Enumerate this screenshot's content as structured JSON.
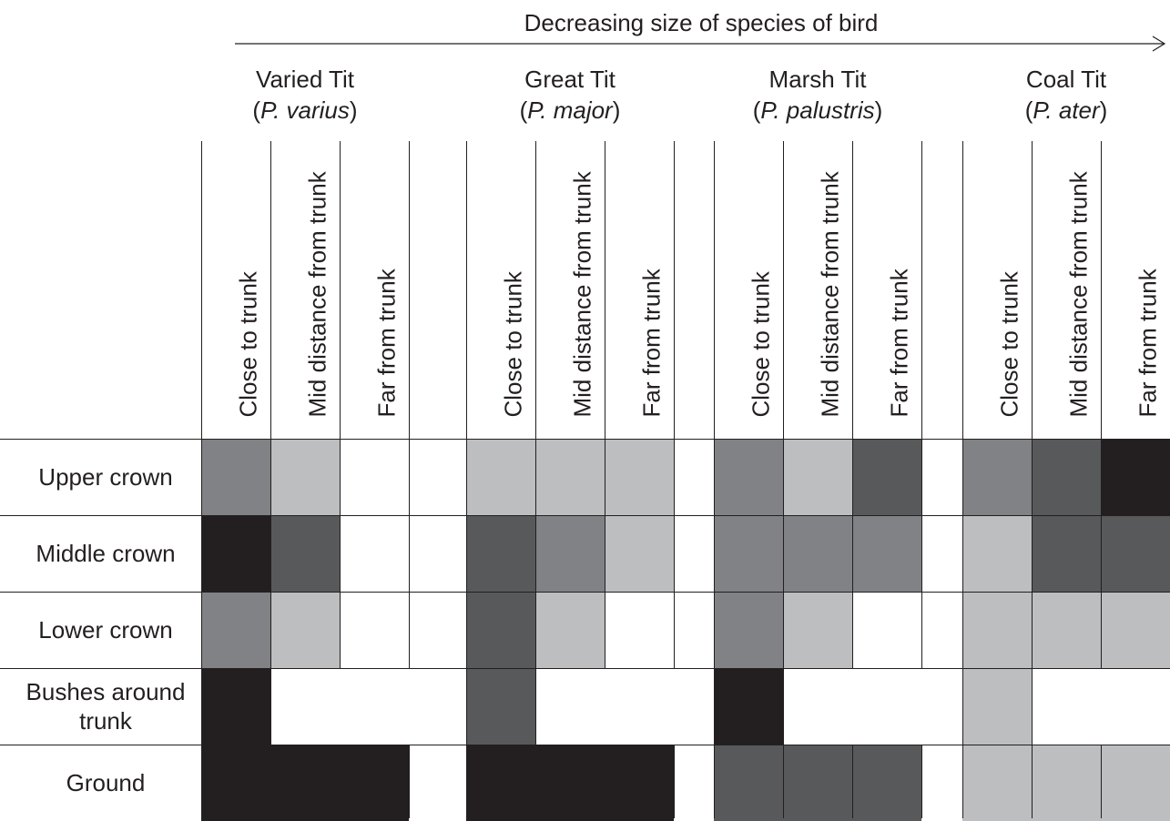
{
  "axis_label": "Decreasing size of species of bird",
  "colors": {
    "black": "#231f20",
    "dark": "#58595b",
    "medium": "#808285",
    "light": "#bcbec0",
    "white": "#ffffff"
  },
  "species": [
    {
      "common": "Varied Tit",
      "latin": "P. varius"
    },
    {
      "common": "Great Tit",
      "latin": "P. major"
    },
    {
      "common": "Marsh Tit",
      "latin": "P. palustris"
    },
    {
      "common": "Coal Tit",
      "latin": "P. ater"
    }
  ],
  "columns": [
    "Close to trunk",
    "Mid distance from trunk",
    "Far from trunk"
  ],
  "rows": [
    "Upper crown",
    "Middle crown",
    "Lower crown",
    "Bushes around trunk",
    "Ground"
  ],
  "cells": [
    [
      [
        "medium",
        "light",
        "white"
      ],
      [
        "black",
        "dark",
        "white"
      ],
      [
        "medium",
        "light",
        "white"
      ],
      [
        "black",
        null,
        null
      ],
      [
        "black",
        "black",
        "black"
      ]
    ],
    [
      [
        "light",
        "light",
        "light"
      ],
      [
        "dark",
        "medium",
        "light"
      ],
      [
        "dark",
        "light",
        "white"
      ],
      [
        "dark",
        null,
        null
      ],
      [
        "black",
        "black",
        "black"
      ]
    ],
    [
      [
        "medium",
        "light",
        "dark"
      ],
      [
        "medium",
        "medium",
        "medium"
      ],
      [
        "medium",
        "light",
        "white"
      ],
      [
        "black",
        null,
        null
      ],
      [
        "dark",
        "dark",
        "dark"
      ]
    ],
    [
      [
        "medium",
        "dark",
        "black"
      ],
      [
        "light",
        "dark",
        "dark"
      ],
      [
        "light",
        "light",
        "light"
      ],
      [
        "light",
        null,
        null
      ],
      [
        "light",
        "light",
        "light"
      ]
    ]
  ]
}
